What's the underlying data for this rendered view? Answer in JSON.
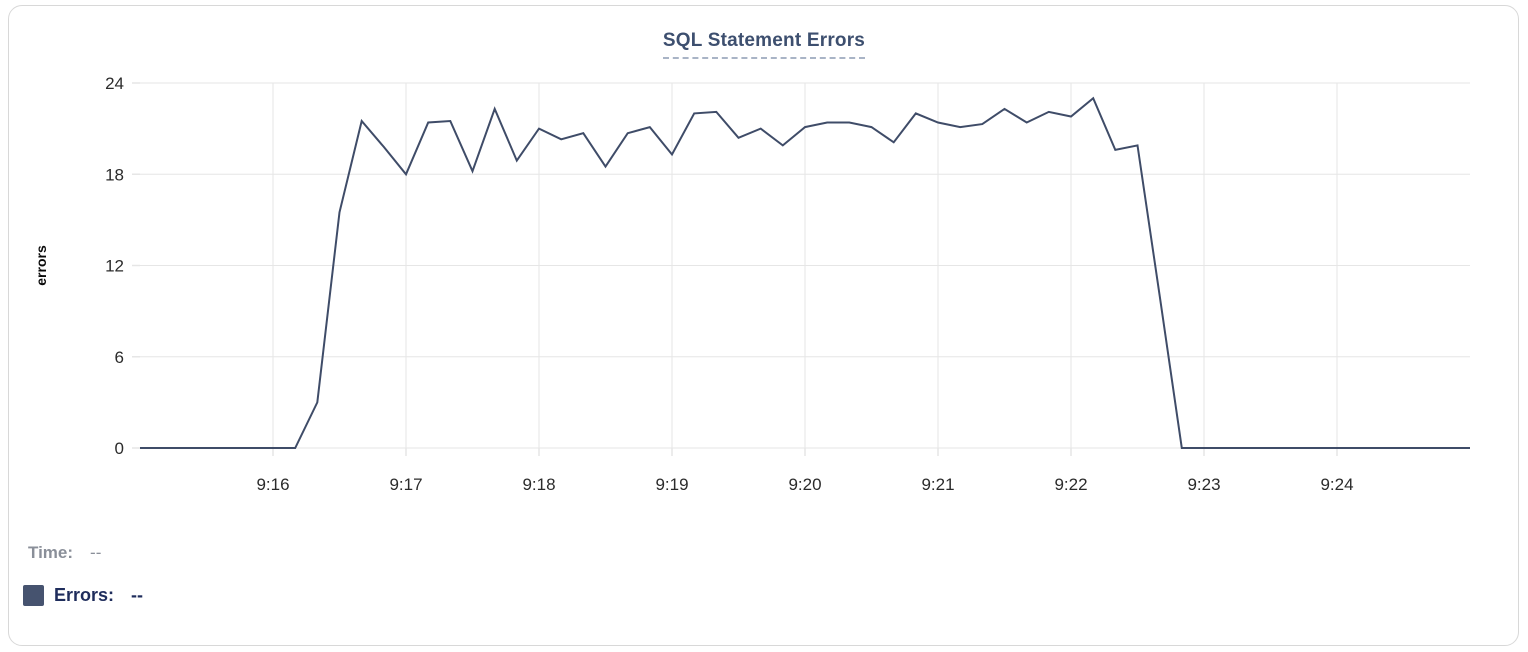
{
  "chart": {
    "title": "SQL Statement Errors"
  },
  "chart_data": {
    "type": "line",
    "title": "SQL Statement Errors",
    "xlabel": "",
    "ylabel": "errors",
    "ylim": [
      0,
      24
    ],
    "y_ticks": [
      0,
      6,
      12,
      18,
      24
    ],
    "x_start": "9:15:00",
    "x_end": "9:25:00",
    "interval_seconds": 10,
    "x_ticks": [
      {
        "label": "9:16",
        "offset_s": 60
      },
      {
        "label": "9:17",
        "offset_s": 120
      },
      {
        "label": "9:18",
        "offset_s": 180
      },
      {
        "label": "9:19",
        "offset_s": 240
      },
      {
        "label": "9:20",
        "offset_s": 300
      },
      {
        "label": "9:21",
        "offset_s": 360
      },
      {
        "label": "9:22",
        "offset_s": 420
      },
      {
        "label": "9:23",
        "offset_s": 480
      },
      {
        "label": "9:24",
        "offset_s": 540
      }
    ],
    "grid": true,
    "legend_position": "bottom-left",
    "series": [
      {
        "name": "Errors",
        "color": "#3f4c68",
        "values": [
          0,
          0,
          0,
          0,
          0,
          0,
          0,
          0,
          3,
          15.5,
          21.5,
          19.8,
          18,
          21.4,
          21.5,
          18.2,
          22.3,
          18.9,
          21,
          20.3,
          20.7,
          18.5,
          20.7,
          21.1,
          19.3,
          22,
          22.1,
          20.4,
          21,
          19.9,
          21.1,
          21.4,
          21.4,
          21.1,
          20.1,
          22,
          21.4,
          21.1,
          21.3,
          22.3,
          21.4,
          22.1,
          21.8,
          23,
          19.6,
          19.9,
          10,
          0,
          0,
          0,
          0,
          0,
          0,
          0,
          0,
          0,
          0,
          0,
          0,
          0,
          0
        ]
      }
    ]
  },
  "readout": {
    "time_label": "Time:",
    "time_value": "--",
    "errors_label": "Errors:",
    "errors_value": "--",
    "swatch_color": "#46536f"
  },
  "colors": {
    "title": "#3d4f6f",
    "underline": "#a9b4c6",
    "grid": "#e6e6e6",
    "tick_text": "#2b2b2b",
    "axis_label": "#0a0a0a",
    "line": "#3f4c68",
    "time_text": "#8a8f99",
    "errors_text": "#1f2d5c",
    "card_border": "#d8d8d8"
  }
}
